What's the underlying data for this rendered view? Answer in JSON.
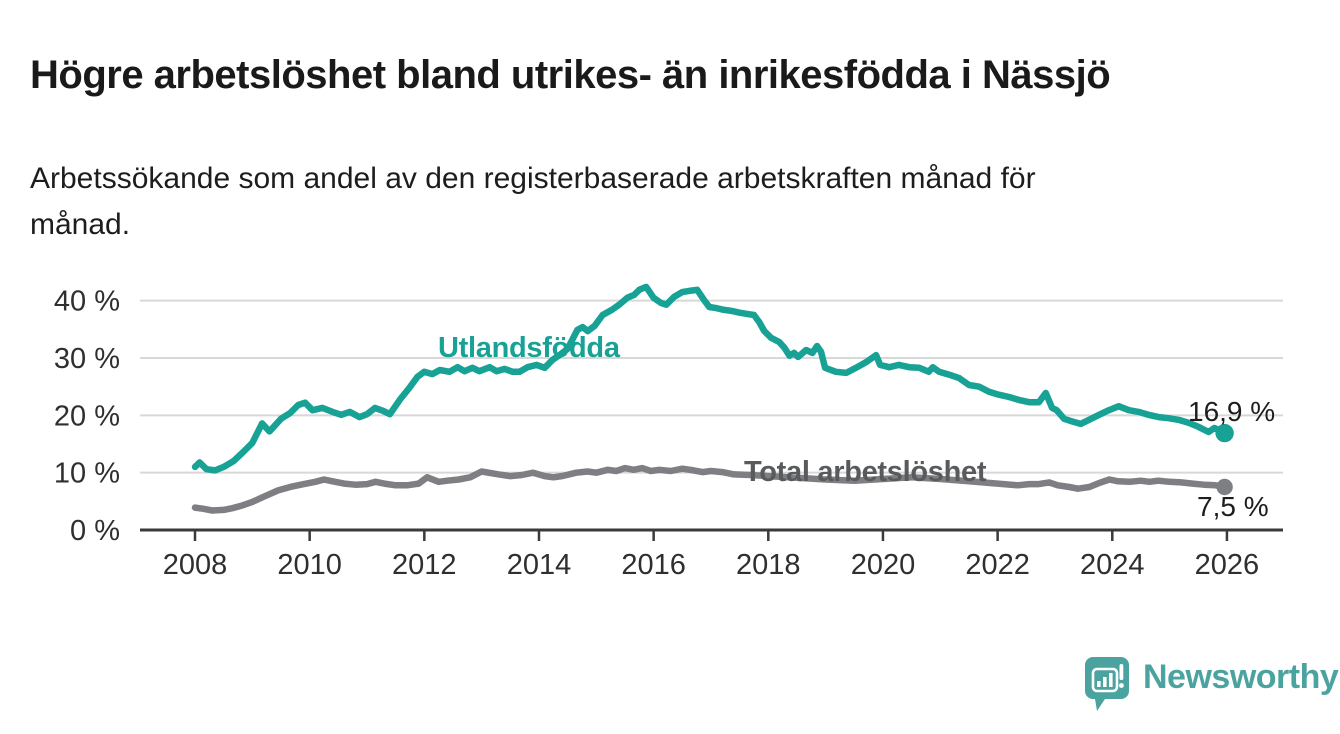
{
  "header": {
    "title": "Högre arbetslöshet bland utrikes- än inrikesfödda i Nässjö",
    "subtitle": "Arbetssökande som andel av den registerbaserade arbetskraften månad för\nmånad."
  },
  "chart_data": {
    "type": "line",
    "title": "Högre arbetslöshet bland utrikes- än inrikesfödda i Nässjö",
    "subtitle": "Arbetssökande som andel av den registerbaserade arbetskraften månad för månad.",
    "xlabel": "",
    "ylabel": "",
    "unit": "%",
    "grid": true,
    "legend_position": "inline-labels",
    "x_range": [
      2008,
      2026
    ],
    "ylim": [
      0,
      44
    ],
    "x_ticks": [
      2008,
      2010,
      2012,
      2014,
      2016,
      2018,
      2020,
      2022,
      2024,
      2026
    ],
    "y_ticks": [
      {
        "label": "0 %",
        "value": 0
      },
      {
        "label": "10 %",
        "value": 10
      },
      {
        "label": "20 %",
        "value": 20
      },
      {
        "label": "30 %",
        "value": 30
      },
      {
        "label": "40 %",
        "value": 40
      }
    ],
    "colors": {
      "axis": "#3a3a3a",
      "axis_text": "#2f2f2f",
      "grid": "#d8d8d8",
      "value_label_text": "#1d1d1d"
    },
    "series": [
      {
        "name": "Utlandsfödda",
        "color": "#17a295",
        "end_label": "16,9 %",
        "end_value": 16.9,
        "points": [
          [
            2008.0,
            11.0
          ],
          [
            2008.08,
            11.8
          ],
          [
            2008.2,
            10.6
          ],
          [
            2008.35,
            10.4
          ],
          [
            2008.5,
            11.0
          ],
          [
            2008.67,
            12.0
          ],
          [
            2008.84,
            13.6
          ],
          [
            2009.0,
            15.2
          ],
          [
            2009.17,
            18.6
          ],
          [
            2009.3,
            17.2
          ],
          [
            2009.5,
            19.4
          ],
          [
            2009.66,
            20.4
          ],
          [
            2009.8,
            21.8
          ],
          [
            2009.92,
            22.2
          ],
          [
            2010.05,
            20.9
          ],
          [
            2010.22,
            21.3
          ],
          [
            2010.4,
            20.6
          ],
          [
            2010.55,
            20.1
          ],
          [
            2010.7,
            20.6
          ],
          [
            2010.87,
            19.7
          ],
          [
            2011.0,
            20.2
          ],
          [
            2011.14,
            21.3
          ],
          [
            2011.28,
            20.8
          ],
          [
            2011.4,
            20.2
          ],
          [
            2011.57,
            22.7
          ],
          [
            2011.74,
            24.8
          ],
          [
            2011.88,
            26.7
          ],
          [
            2012.0,
            27.6
          ],
          [
            2012.14,
            27.2
          ],
          [
            2012.27,
            27.9
          ],
          [
            2012.44,
            27.6
          ],
          [
            2012.58,
            28.4
          ],
          [
            2012.7,
            27.7
          ],
          [
            2012.84,
            28.3
          ],
          [
            2012.96,
            27.7
          ],
          [
            2013.14,
            28.4
          ],
          [
            2013.26,
            27.7
          ],
          [
            2013.4,
            28.1
          ],
          [
            2013.54,
            27.6
          ],
          [
            2013.66,
            27.6
          ],
          [
            2013.8,
            28.4
          ],
          [
            2013.96,
            28.8
          ],
          [
            2014.1,
            28.3
          ],
          [
            2014.24,
            29.7
          ],
          [
            2014.36,
            30.5
          ],
          [
            2014.5,
            31.6
          ],
          [
            2014.67,
            34.9
          ],
          [
            2014.76,
            35.4
          ],
          [
            2014.85,
            34.7
          ],
          [
            2014.97,
            35.6
          ],
          [
            2015.11,
            37.5
          ],
          [
            2015.27,
            38.4
          ],
          [
            2015.4,
            39.3
          ],
          [
            2015.54,
            40.5
          ],
          [
            2015.66,
            41.0
          ],
          [
            2015.75,
            41.9
          ],
          [
            2015.87,
            42.4
          ],
          [
            2016.0,
            40.5
          ],
          [
            2016.13,
            39.6
          ],
          [
            2016.22,
            39.3
          ],
          [
            2016.36,
            40.7
          ],
          [
            2016.5,
            41.5
          ],
          [
            2016.62,
            41.7
          ],
          [
            2016.76,
            41.9
          ],
          [
            2016.88,
            40.1
          ],
          [
            2016.97,
            38.9
          ],
          [
            2017.09,
            38.7
          ],
          [
            2017.23,
            38.4
          ],
          [
            2017.37,
            38.2
          ],
          [
            2017.5,
            37.9
          ],
          [
            2017.63,
            37.7
          ],
          [
            2017.75,
            37.5
          ],
          [
            2017.84,
            36.3
          ],
          [
            2017.93,
            34.7
          ],
          [
            2018.05,
            33.5
          ],
          [
            2018.19,
            32.8
          ],
          [
            2018.28,
            31.8
          ],
          [
            2018.37,
            30.4
          ],
          [
            2018.45,
            30.9
          ],
          [
            2018.52,
            30.2
          ],
          [
            2018.66,
            31.4
          ],
          [
            2018.77,
            30.9
          ],
          [
            2018.85,
            32.1
          ],
          [
            2018.92,
            31.1
          ],
          [
            2018.99,
            28.3
          ],
          [
            2019.18,
            27.6
          ],
          [
            2019.36,
            27.4
          ],
          [
            2019.53,
            28.3
          ],
          [
            2019.71,
            29.3
          ],
          [
            2019.88,
            30.5
          ],
          [
            2019.95,
            28.8
          ],
          [
            2020.11,
            28.4
          ],
          [
            2020.28,
            28.8
          ],
          [
            2020.46,
            28.4
          ],
          [
            2020.63,
            28.3
          ],
          [
            2020.8,
            27.6
          ],
          [
            2020.87,
            28.4
          ],
          [
            2020.98,
            27.6
          ],
          [
            2021.15,
            27.1
          ],
          [
            2021.33,
            26.5
          ],
          [
            2021.5,
            25.3
          ],
          [
            2021.68,
            25.0
          ],
          [
            2021.85,
            24.1
          ],
          [
            2022.02,
            23.6
          ],
          [
            2022.2,
            23.2
          ],
          [
            2022.37,
            22.7
          ],
          [
            2022.55,
            22.3
          ],
          [
            2022.72,
            22.3
          ],
          [
            2022.84,
            23.9
          ],
          [
            2022.95,
            21.3
          ],
          [
            2023.03,
            20.9
          ],
          [
            2023.16,
            19.4
          ],
          [
            2023.28,
            19.0
          ],
          [
            2023.45,
            18.5
          ],
          [
            2023.59,
            19.2
          ],
          [
            2023.77,
            20.1
          ],
          [
            2023.94,
            20.9
          ],
          [
            2024.11,
            21.6
          ],
          [
            2024.29,
            20.9
          ],
          [
            2024.46,
            20.6
          ],
          [
            2024.63,
            20.1
          ],
          [
            2024.81,
            19.7
          ],
          [
            2024.98,
            19.5
          ],
          [
            2025.16,
            19.2
          ],
          [
            2025.33,
            18.7
          ],
          [
            2025.5,
            18.0
          ],
          [
            2025.68,
            17.1
          ],
          [
            2025.78,
            17.8
          ],
          [
            2025.89,
            17.3
          ],
          [
            2025.96,
            16.9
          ]
        ]
      },
      {
        "name": "Total arbetslöshet",
        "color": "#7e7f82",
        "label_color": "#595a5e",
        "end_label": "7,5 %",
        "end_value": 7.5,
        "points": [
          [
            2008.0,
            3.9
          ],
          [
            2008.15,
            3.7
          ],
          [
            2008.3,
            3.4
          ],
          [
            2008.5,
            3.5
          ],
          [
            2008.65,
            3.8
          ],
          [
            2008.8,
            4.2
          ],
          [
            2009.0,
            4.9
          ],
          [
            2009.2,
            5.8
          ],
          [
            2009.45,
            6.9
          ],
          [
            2009.7,
            7.6
          ],
          [
            2009.9,
            8.0
          ],
          [
            2010.1,
            8.4
          ],
          [
            2010.25,
            8.8
          ],
          [
            2010.4,
            8.5
          ],
          [
            2010.6,
            8.1
          ],
          [
            2010.8,
            7.9
          ],
          [
            2011.0,
            8.0
          ],
          [
            2011.15,
            8.4
          ],
          [
            2011.3,
            8.1
          ],
          [
            2011.5,
            7.8
          ],
          [
            2011.7,
            7.8
          ],
          [
            2011.9,
            8.1
          ],
          [
            2012.05,
            9.2
          ],
          [
            2012.25,
            8.4
          ],
          [
            2012.4,
            8.6
          ],
          [
            2012.6,
            8.8
          ],
          [
            2012.8,
            9.2
          ],
          [
            2013.0,
            10.2
          ],
          [
            2013.3,
            9.7
          ],
          [
            2013.5,
            9.4
          ],
          [
            2013.7,
            9.6
          ],
          [
            2013.9,
            10.0
          ],
          [
            2014.1,
            9.4
          ],
          [
            2014.25,
            9.2
          ],
          [
            2014.4,
            9.4
          ],
          [
            2014.65,
            10.0
          ],
          [
            2014.85,
            10.2
          ],
          [
            2015.0,
            10.0
          ],
          [
            2015.2,
            10.5
          ],
          [
            2015.35,
            10.3
          ],
          [
            2015.5,
            10.8
          ],
          [
            2015.65,
            10.5
          ],
          [
            2015.8,
            10.8
          ],
          [
            2015.95,
            10.3
          ],
          [
            2016.1,
            10.5
          ],
          [
            2016.3,
            10.3
          ],
          [
            2016.5,
            10.7
          ],
          [
            2016.7,
            10.4
          ],
          [
            2016.85,
            10.1
          ],
          [
            2017.0,
            10.3
          ],
          [
            2017.2,
            10.1
          ],
          [
            2017.4,
            9.7
          ],
          [
            2017.7,
            9.6
          ],
          [
            2018.0,
            9.4
          ],
          [
            2018.5,
            9.1
          ],
          [
            2019.0,
            8.8
          ],
          [
            2019.5,
            8.6
          ],
          [
            2020.0,
            8.9
          ],
          [
            2020.5,
            9.2
          ],
          [
            2021.0,
            8.9
          ],
          [
            2021.5,
            8.5
          ],
          [
            2022.0,
            8.1
          ],
          [
            2022.35,
            7.8
          ],
          [
            2022.55,
            8.0
          ],
          [
            2022.72,
            8.0
          ],
          [
            2022.9,
            8.3
          ],
          [
            2023.05,
            7.8
          ],
          [
            2023.25,
            7.5
          ],
          [
            2023.4,
            7.2
          ],
          [
            2023.6,
            7.5
          ],
          [
            2023.8,
            8.3
          ],
          [
            2023.95,
            8.8
          ],
          [
            2024.1,
            8.5
          ],
          [
            2024.3,
            8.4
          ],
          [
            2024.5,
            8.6
          ],
          [
            2024.65,
            8.4
          ],
          [
            2024.8,
            8.6
          ],
          [
            2025.0,
            8.4
          ],
          [
            2025.2,
            8.3
          ],
          [
            2025.4,
            8.1
          ],
          [
            2025.6,
            7.9
          ],
          [
            2025.8,
            7.8
          ],
          [
            2025.96,
            7.5
          ]
        ]
      }
    ]
  },
  "footer": {
    "brand": "Newsworthy",
    "brand_color": "#4ba3a0"
  }
}
